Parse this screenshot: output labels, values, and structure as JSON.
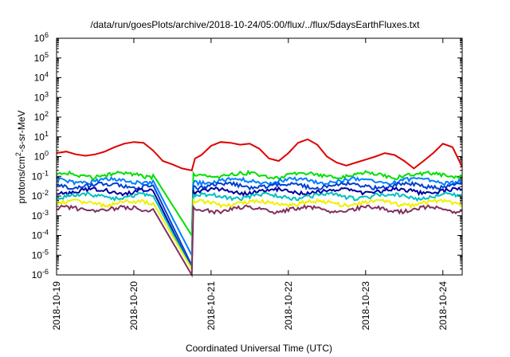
{
  "chart_data": {
    "type": "line",
    "title": "/data/run/goesPlots/archive/2018-10-24/05:00/flux/../flux/5daysEarthFluxes.txt",
    "xlabel": "Coordinated Universal Time (UTC)",
    "ylabel": "protons/cm2-s-sr-MeV",
    "ylabel_parts": {
      "base": "protons/cm",
      "sup": "2",
      "rest": "-s-sr-MeV"
    },
    "y_scale": "log",
    "ylim": [
      1e-06,
      1000000.0
    ],
    "y_ticks": [
      {
        "exp": -6,
        "label": "10",
        "sup": "-6"
      },
      {
        "exp": -5,
        "label": "10",
        "sup": "-5"
      },
      {
        "exp": -4,
        "label": "10",
        "sup": "-4"
      },
      {
        "exp": -3,
        "label": "10",
        "sup": "-3"
      },
      {
        "exp": -2,
        "label": "10",
        "sup": "-2"
      },
      {
        "exp": -1,
        "label": "10",
        "sup": "-1"
      },
      {
        "exp": 0,
        "label": "10",
        "sup": "0"
      },
      {
        "exp": 1,
        "label": "10",
        "sup": "1"
      },
      {
        "exp": 2,
        "label": "10",
        "sup": "2"
      },
      {
        "exp": 3,
        "label": "10",
        "sup": "3"
      },
      {
        "exp": 4,
        "label": "10",
        "sup": "4"
      },
      {
        "exp": 5,
        "label": "10",
        "sup": "5"
      },
      {
        "exp": 6,
        "label": "10",
        "sup": "6"
      }
    ],
    "xlim": [
      "2018-10-19",
      "2018-10-24T06:00"
    ],
    "x_ticks": [
      "2018-10-19",
      "2018-10-20",
      "2018-10-21",
      "2018-10-22",
      "2018-10-23",
      "2018-10-24"
    ],
    "grid": false,
    "legend": "none",
    "series": [
      {
        "color": "#e00000",
        "points": [
          [
            "2018-10-19T00:00",
            1.5
          ],
          [
            "2018-10-19T03:00",
            1.8
          ],
          [
            "2018-10-19T06:00",
            1.3
          ],
          [
            "2018-10-19T09:00",
            1.1
          ],
          [
            "2018-10-19T12:00",
            1.3
          ],
          [
            "2018-10-19T15:00",
            1.8
          ],
          [
            "2018-10-19T18:00",
            3.0
          ],
          [
            "2018-10-19T21:00",
            4.5
          ],
          [
            "2018-10-20T00:00",
            5.5
          ],
          [
            "2018-10-20T03:00",
            5.0
          ],
          [
            "2018-10-20T06:00",
            2.0
          ],
          [
            "2018-10-20T09:00",
            0.6
          ],
          [
            "2018-10-20T12:00",
            0.4
          ],
          [
            "2018-10-20T15:00",
            0.25
          ],
          [
            "2018-10-20T18:00",
            0.2
          ],
          [
            "2018-10-20T19:00",
            0.8
          ],
          [
            "2018-10-20T21:00",
            1.2
          ],
          [
            "2018-10-21T00:00",
            3.5
          ],
          [
            "2018-10-21T03:00",
            5.5
          ],
          [
            "2018-10-21T06:00",
            5.0
          ],
          [
            "2018-10-21T09:00",
            4.0
          ],
          [
            "2018-10-21T12:00",
            4.5
          ],
          [
            "2018-10-21T15:00",
            2.5
          ],
          [
            "2018-10-21T18:00",
            0.8
          ],
          [
            "2018-10-21T21:00",
            0.6
          ],
          [
            "2018-10-22T00:00",
            1.5
          ],
          [
            "2018-10-22T03:00",
            5.0
          ],
          [
            "2018-10-22T06:00",
            7.5
          ],
          [
            "2018-10-22T09:00",
            4.0
          ],
          [
            "2018-10-22T12:00",
            1.0
          ],
          [
            "2018-10-22T15:00",
            0.5
          ],
          [
            "2018-10-22T18:00",
            0.35
          ],
          [
            "2018-10-22T21:00",
            0.5
          ],
          [
            "2018-10-23T00:00",
            0.7
          ],
          [
            "2018-10-23T03:00",
            1.0
          ],
          [
            "2018-10-23T06:00",
            1.5
          ],
          [
            "2018-10-23T09:00",
            1.2
          ],
          [
            "2018-10-23T12:00",
            0.6
          ],
          [
            "2018-10-23T15:00",
            0.25
          ],
          [
            "2018-10-23T18:00",
            0.6
          ],
          [
            "2018-10-23T21:00",
            1.5
          ],
          [
            "2018-10-24T00:00",
            4.5
          ],
          [
            "2018-10-24T03:00",
            3.0
          ],
          [
            "2018-10-24T06:00",
            0.3
          ]
        ]
      },
      {
        "color": "#00e000",
        "base": 0.12,
        "dip_floor": 0.0001
      },
      {
        "color": "#0080ff",
        "base": 0.06,
        "dip_floor": 1e-05
      },
      {
        "color": "#0040d0",
        "base": 0.035,
        "dip_floor": 3e-06
      },
      {
        "color": "#0000a0",
        "base": 0.018,
        "dip_floor": 2e-06
      },
      {
        "color": "#00c0c0",
        "base": 0.01,
        "dip_floor": 2e-06
      },
      {
        "color": "#f0f000",
        "base": 0.0045,
        "dip_floor": 2e-06
      },
      {
        "color": "#803060",
        "base": 0.0022,
        "dip_floor": 1e-06
      }
    ]
  }
}
